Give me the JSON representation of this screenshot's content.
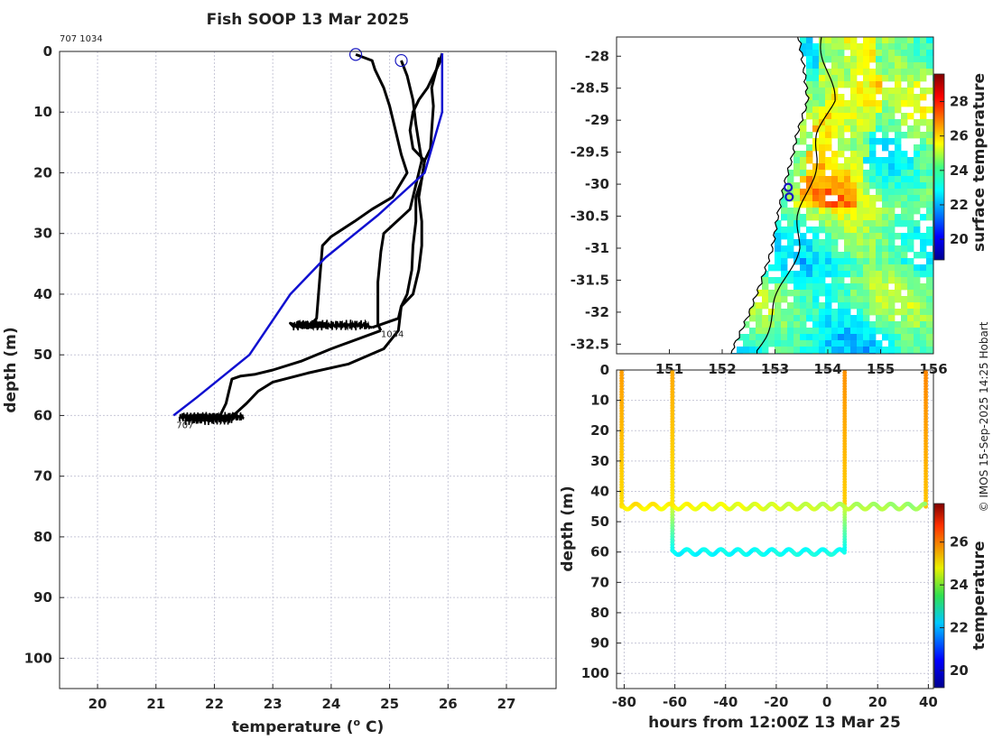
{
  "title": "Fish SOOP 13 Mar 2025",
  "corner_ids": "707 1034",
  "credit": "© IMOS 15-Sep-2025 14:25 Hobart",
  "colors": {
    "profile": "#000000",
    "reference": "#1010d0",
    "marker": "#1818c0",
    "coast": "#000000"
  },
  "chart_data": [
    {
      "id": "profile",
      "type": "line",
      "xlabel": "temperature (o C)",
      "xlabel_main": "temperature (",
      "xlabel_sup": "o",
      "xlabel_end": " C)",
      "ylabel": "depth (m)",
      "xlim": [
        19.35,
        27.85
      ],
      "ylim": [
        105,
        0
      ],
      "xticks": [
        "20",
        "21",
        "22",
        "23",
        "24",
        "25",
        "26",
        "27"
      ],
      "yticks": [
        "0",
        "10",
        "20",
        "30",
        "40",
        "50",
        "60",
        "70",
        "80",
        "90",
        "100"
      ],
      "grid": true,
      "labels": [
        {
          "text": "1034",
          "x": 24.85,
          "y": 46.5
        },
        {
          "text": "707",
          "x": 21.35,
          "y": 61.5
        }
      ],
      "markers": [
        {
          "name": "start-707",
          "x": 24.42,
          "y": 0.5
        },
        {
          "name": "start-1034",
          "x": 25.2,
          "y": 1.5
        }
      ],
      "series": [
        {
          "name": "707-down",
          "color": "#000000",
          "points": [
            [
              24.42,
              0.5
            ],
            [
              24.7,
              1.5
            ],
            [
              24.75,
              3
            ],
            [
              24.9,
              6
            ],
            [
              25.0,
              9
            ],
            [
              25.1,
              13
            ],
            [
              25.2,
              17
            ],
            [
              25.3,
              20
            ],
            [
              25.05,
              24
            ],
            [
              24.7,
              26
            ],
            [
              24.4,
              28
            ],
            [
              24.0,
              30.5
            ],
            [
              23.85,
              32
            ],
            [
              23.8,
              38
            ],
            [
              23.75,
              44
            ],
            [
              23.65,
              45
            ],
            [
              23.35,
              45.3
            ],
            [
              23.3,
              44.8
            ],
            [
              23.5,
              45.5
            ],
            [
              24.0,
              45.2
            ],
            [
              24.5,
              45.0
            ],
            [
              24.7,
              45.5
            ]
          ]
        },
        {
          "name": "1034-down",
          "color": "#000000",
          "points": [
            [
              25.2,
              1.5
            ],
            [
              25.3,
              4
            ],
            [
              25.4,
              8
            ],
            [
              25.45,
              12
            ],
            [
              25.5,
              15
            ],
            [
              25.55,
              18
            ],
            [
              25.45,
              22
            ],
            [
              25.35,
              26
            ],
            [
              24.9,
              30
            ],
            [
              24.85,
              33
            ],
            [
              24.8,
              38
            ],
            [
              24.8,
              45
            ],
            [
              24.85,
              46
            ]
          ]
        },
        {
          "name": "1034-up",
          "color": "#000000",
          "points": [
            [
              24.85,
              46
            ],
            [
              24.0,
              49
            ],
            [
              23.5,
              51
            ],
            [
              23.0,
              52.5
            ],
            [
              22.7,
              53.2
            ],
            [
              22.45,
              53.5
            ],
            [
              22.3,
              54
            ],
            [
              22.25,
              56
            ],
            [
              22.2,
              58
            ],
            [
              22.1,
              60
            ],
            [
              21.5,
              60.5
            ]
          ]
        },
        {
          "name": "1034-return",
          "color": "#000000",
          "points": [
            [
              21.5,
              60.5
            ],
            [
              22.3,
              60.2
            ],
            [
              22.55,
              58
            ],
            [
              22.75,
              56
            ],
            [
              23.0,
              54.5
            ],
            [
              23.6,
              53
            ],
            [
              24.3,
              51.5
            ],
            [
              24.9,
              49
            ],
            [
              25.15,
              46
            ],
            [
              25.2,
              42
            ],
            [
              25.3,
              40
            ],
            [
              25.38,
              36
            ],
            [
              25.4,
              32
            ],
            [
              25.45,
              28
            ],
            [
              25.45,
              24
            ],
            [
              25.55,
              21
            ],
            [
              25.6,
              18
            ],
            [
              25.7,
              16
            ],
            [
              25.72,
              13
            ],
            [
              25.75,
              9
            ],
            [
              25.72,
              6
            ],
            [
              25.8,
              3
            ],
            [
              25.85,
              1
            ]
          ]
        },
        {
          "name": "707-return",
          "color": "#000000",
          "points": [
            [
              24.7,
              45.5
            ],
            [
              25.15,
              44
            ],
            [
              25.2,
              42
            ],
            [
              25.4,
              40
            ],
            [
              25.5,
              36
            ],
            [
              25.55,
              32
            ],
            [
              25.55,
              28
            ],
            [
              25.5,
              24
            ],
            [
              25.55,
              21
            ],
            [
              25.6,
              18
            ],
            [
              25.4,
              16
            ],
            [
              25.35,
              13
            ],
            [
              25.4,
              10
            ],
            [
              25.5,
              8
            ],
            [
              25.65,
              6
            ],
            [
              25.75,
              4
            ],
            [
              25.85,
              2
            ],
            [
              25.9,
              0.3
            ]
          ]
        }
      ],
      "reference": {
        "name": "reference-profile",
        "color": "#1010d0",
        "points": [
          [
            25.9,
            0.3
          ],
          [
            25.9,
            10
          ],
          [
            25.6,
            20
          ],
          [
            24.8,
            27
          ],
          [
            23.9,
            34
          ],
          [
            23.3,
            40
          ],
          [
            22.6,
            50
          ],
          [
            21.7,
            57
          ],
          [
            21.3,
            60
          ]
        ]
      }
    },
    {
      "id": "map",
      "type": "heatmap",
      "xlim": [
        150.0,
        156.0
      ],
      "ylim": [
        -32.65,
        -27.7
      ],
      "xticks": [
        "151",
        "152",
        "153",
        "154",
        "155",
        "156"
      ],
      "yticks": [
        "-28",
        "-28.5",
        "-29",
        "-29.5",
        "-30",
        "-30.5",
        "-31",
        "-31.5",
        "-32",
        "-32.5"
      ],
      "colorbar_label": "surface temperature",
      "colorbar_ticks": [
        "20",
        "22",
        "24",
        "26",
        "28"
      ],
      "colorbar_range": [
        18.8,
        29.6
      ],
      "positions": [
        {
          "name": "position-707",
          "lon": 153.25,
          "lat": -30.05
        },
        {
          "name": "position-1034",
          "lon": 153.27,
          "lat": -30.2
        }
      ]
    },
    {
      "id": "timeseries",
      "type": "scatter",
      "xlabel": "hours from 12:00Z 13 Mar 25",
      "ylabel": "depth (m)",
      "xlim": [
        -83,
        42
      ],
      "ylim": [
        105,
        0
      ],
      "xticks": [
        "-80",
        "-60",
        "-40",
        "-20",
        "0",
        "20",
        "40"
      ],
      "yticks": [
        "0",
        "10",
        "20",
        "30",
        "40",
        "50",
        "60",
        "70",
        "80",
        "90",
        "100"
      ],
      "grid": true,
      "colorbar_label": "temperature",
      "colorbar_ticks": [
        "20",
        "22",
        "24",
        "26"
      ],
      "colorbar_range": [
        19.2,
        27.8
      ],
      "casts": [
        {
          "hour": -81,
          "temp": 25.4
        },
        {
          "hour": -61,
          "temp": 25.3
        },
        {
          "hour": 7,
          "temp": 25.5
        },
        {
          "hour": 39,
          "temp": 25.6
        }
      ],
      "segments": [
        {
          "name": "shallow-track",
          "from_hour": -81,
          "to_hour": 39,
          "depth": 45,
          "amplitude": 0.9,
          "period_h": 6.7,
          "temp_start": 24.8,
          "temp_end": 23.7
        },
        {
          "name": "deep-track",
          "from_hour": -61,
          "to_hour": 7,
          "depth": 60,
          "amplitude": 0.9,
          "period_h": 6.7,
          "temp_start": 22.4,
          "temp_end": 22.6
        }
      ]
    }
  ]
}
